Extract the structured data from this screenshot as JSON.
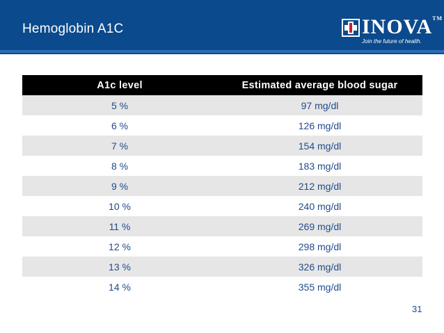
{
  "header": {
    "title": "Hemoglobin A1C",
    "logo_text": "INOVA",
    "logo_tm": "TM",
    "tagline": "Join the future of health."
  },
  "table": {
    "columns": [
      "A1c level",
      "Estimated average blood sugar"
    ],
    "rows": [
      [
        "5 %",
        "97 mg/dl"
      ],
      [
        "6 %",
        "126 mg/dl"
      ],
      [
        "7 %",
        "154 mg/dl"
      ],
      [
        "8 %",
        "183 mg/dl"
      ],
      [
        "9 %",
        "212 mg/dl"
      ],
      [
        "10 %",
        "240 mg/dl"
      ],
      [
        "11 %",
        "269 mg/dl"
      ],
      [
        "12 %",
        "298 mg/dl"
      ],
      [
        "13 %",
        "326 mg/dl"
      ],
      [
        "14 %",
        "355 mg/dl"
      ]
    ]
  },
  "page_number": "31",
  "colors": {
    "header_bg": "#0b4a8c",
    "table_header_bg": "#000000",
    "row_shade": "#e6e6e6",
    "text_blue": "#1f4a8a"
  },
  "icons": {
    "logo_mark": "inova-cross-icon"
  }
}
